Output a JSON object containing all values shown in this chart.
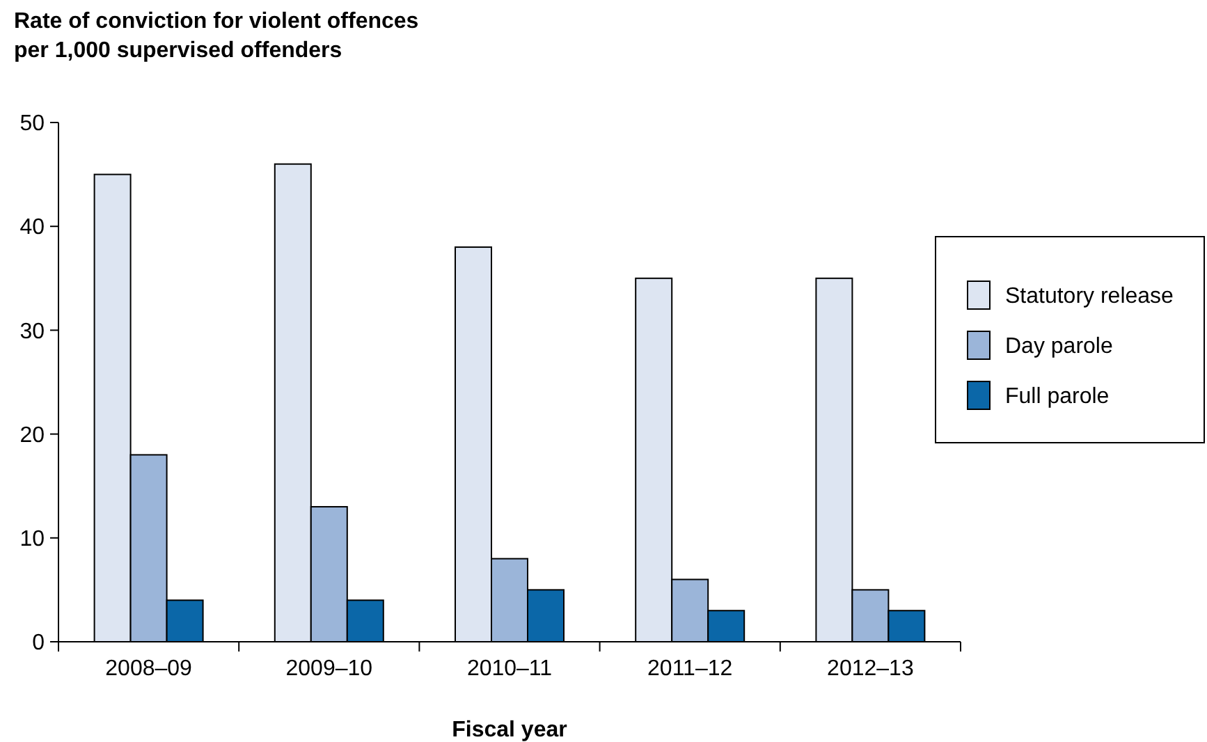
{
  "chart_data": {
    "type": "bar",
    "title": "Rate of conviction for violent offences per 1,000 supervised offenders",
    "xlabel": "Fiscal year",
    "categories": [
      "2008–09",
      "2009–10",
      "2010–11",
      "2011–12",
      "2012–13"
    ],
    "series": [
      {
        "name": "Statutory release",
        "color": "#dde5f2",
        "values": [
          45,
          46,
          38,
          35,
          35
        ]
      },
      {
        "name": "Day parole",
        "color": "#9bb5d9",
        "values": [
          18,
          13,
          8,
          6,
          5
        ]
      },
      {
        "name": "Full parole",
        "color": "#0b67a8",
        "values": [
          4,
          4,
          5,
          3,
          3
        ]
      }
    ],
    "ylim": [
      0,
      50
    ],
    "yticks": [
      0,
      10,
      20,
      30,
      40,
      50
    ],
    "grid": false,
    "legend": "right"
  }
}
